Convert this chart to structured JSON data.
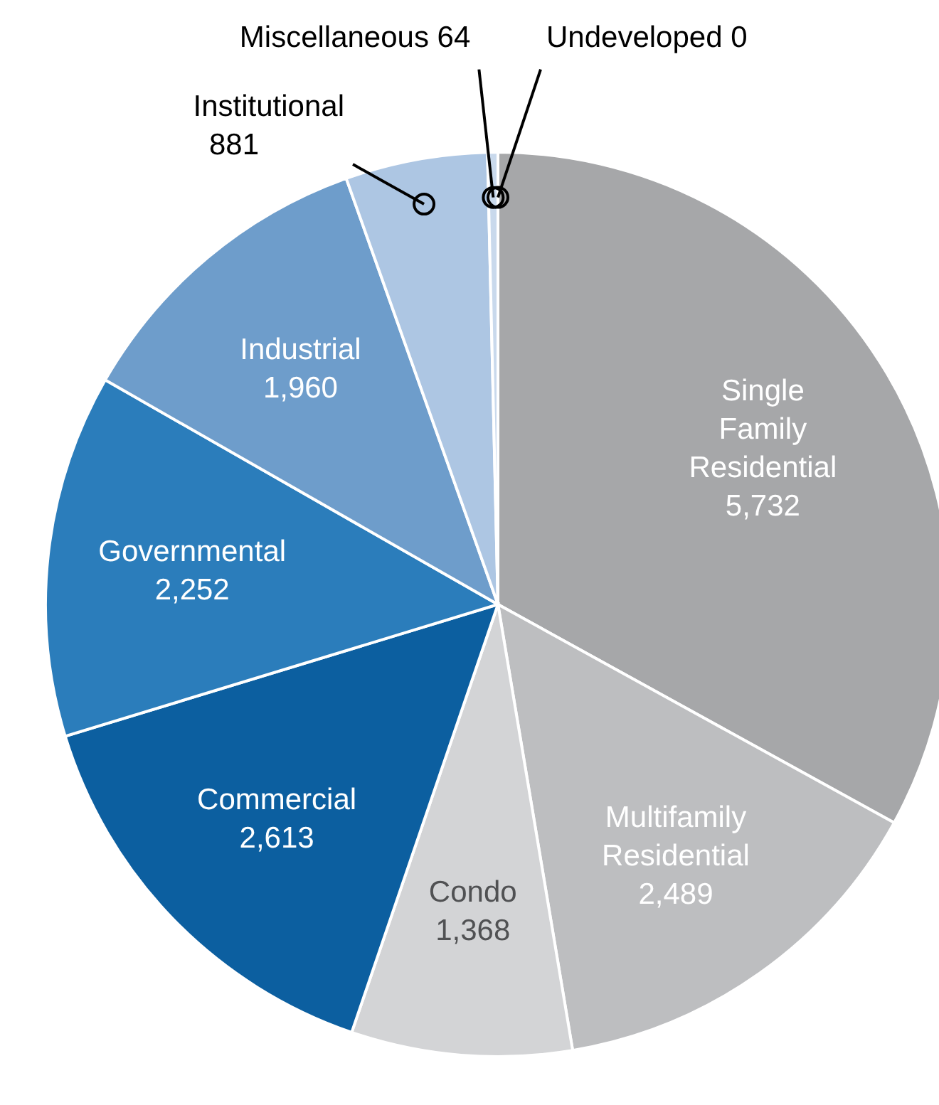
{
  "chart_data": {
    "type": "pie",
    "value_labels": [
      "5,732",
      "2,489",
      "1,368",
      "2,613",
      "2,252",
      "1,960",
      "881",
      "64",
      "0"
    ],
    "categories": [
      "Single Family Residential",
      "Multifamily Residential",
      "Condo",
      "Commercial",
      "Governmental",
      "Industrial",
      "Institutional",
      "Miscellaneous",
      "Undeveloped"
    ],
    "values": [
      5732,
      2489,
      1368,
      2613,
      2252,
      1960,
      881,
      64,
      0
    ],
    "colors": [
      "#a6a7a9",
      "#bdbec0",
      "#d3d4d6",
      "#0c5fa0",
      "#2b7dbb",
      "#6e9dcb",
      "#adc6e3",
      "#c9d9ec",
      "#e3ebf5"
    ]
  }
}
